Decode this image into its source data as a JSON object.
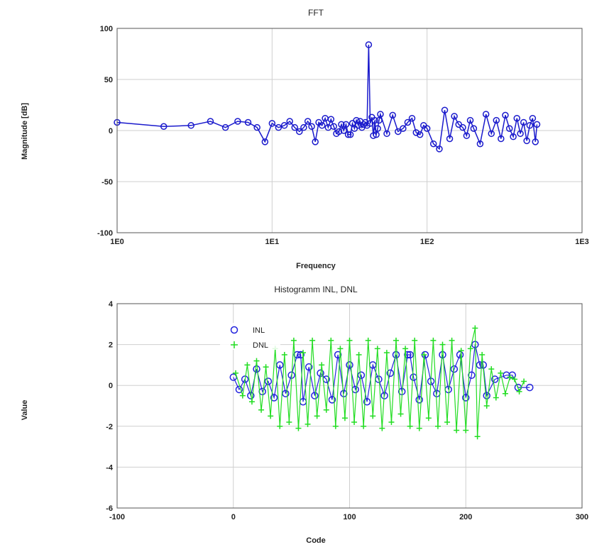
{
  "chart_data": [
    {
      "type": "line",
      "title": "FFT",
      "xlabel": "Frequency",
      "ylabel": "Magnitude [dB]",
      "xscale": "log",
      "xlim": [
        1,
        1000
      ],
      "ylim": [
        -100,
        100
      ],
      "x_ticks": [
        "1E0",
        "1E1",
        "1E2",
        "1E3"
      ],
      "y_ticks": [
        "100",
        "50",
        "0",
        "-50",
        "-100"
      ],
      "grid": true,
      "series": [
        {
          "color": "#1a1acc",
          "marker": "circle",
          "x": [
            1,
            2,
            3,
            4,
            5,
            6,
            7,
            8,
            9,
            10,
            11,
            12,
            13,
            14,
            15,
            16,
            17,
            18,
            19,
            20,
            21,
            22,
            23,
            24,
            25,
            26,
            27,
            28,
            29,
            30,
            31,
            32,
            33,
            34,
            35,
            36,
            37,
            38,
            39,
            40,
            41,
            42,
            43,
            44,
            45,
            46,
            47,
            48,
            49,
            50,
            55,
            60,
            65,
            70,
            75,
            80,
            85,
            90,
            95,
            100,
            110,
            120,
            130,
            140,
            150,
            160,
            170,
            180,
            190,
            200,
            220,
            240,
            260,
            280,
            300,
            320,
            340,
            360,
            380,
            400,
            420,
            440,
            460,
            480,
            500,
            512
          ],
          "y": [
            8,
            4,
            5,
            9,
            3,
            9,
            8,
            3,
            -11,
            7,
            3,
            5,
            9,
            3,
            -1,
            3,
            9,
            4,
            -11,
            8,
            5,
            12,
            3,
            11,
            4,
            -3,
            -1,
            6,
            0,
            6,
            -4,
            -4,
            7,
            2,
            10,
            5,
            9,
            3,
            6,
            8,
            5,
            84,
            7,
            13,
            -5,
            10,
            -4,
            2,
            10,
            16,
            -3,
            15,
            -1,
            2,
            8,
            12,
            -2,
            -4,
            5,
            2,
            -13,
            -18,
            20,
            -8,
            14,
            6,
            3,
            -5,
            10,
            2,
            -13,
            16,
            -3,
            10,
            -8,
            15,
            2,
            -6,
            12,
            -3,
            8,
            -10,
            5,
            12,
            -11,
            6
          ]
        }
      ]
    },
    {
      "type": "scatter",
      "title": "Histogramm INL, DNL",
      "xlabel": "Code",
      "ylabel": "Value",
      "xlim": [
        -100,
        300
      ],
      "ylim": [
        -6,
        4
      ],
      "x_ticks": [
        "-100",
        "0",
        "100",
        "200",
        "300"
      ],
      "y_ticks": [
        "4",
        "2",
        "0",
        "-2",
        "-4",
        "-6"
      ],
      "grid": true,
      "legend_position": "top-left",
      "series": [
        {
          "name": "INL",
          "color": "#2222dd",
          "marker": "circle",
          "x": [
            0,
            5,
            10,
            15,
            20,
            25,
            30,
            35,
            40,
            45,
            50,
            55,
            58,
            60,
            65,
            70,
            75,
            80,
            85,
            90,
            95,
            100,
            105,
            110,
            115,
            120,
            125,
            130,
            135,
            140,
            145,
            150,
            152,
            155,
            160,
            165,
            170,
            175,
            180,
            185,
            190,
            195,
            200,
            205,
            208,
            212,
            215,
            218,
            225,
            235,
            240,
            245,
            255
          ],
          "y": [
            0.4,
            -0.2,
            0.3,
            -0.5,
            0.8,
            -0.3,
            0.2,
            -0.6,
            1.0,
            -0.4,
            0.5,
            1.5,
            1.5,
            -0.8,
            0.9,
            -0.5,
            0.6,
            0.3,
            -0.7,
            1.5,
            -0.4,
            1.0,
            -0.2,
            0.5,
            -0.8,
            1.0,
            0.3,
            -0.5,
            0.6,
            1.5,
            -0.3,
            1.5,
            1.5,
            0.4,
            -0.7,
            1.5,
            0.2,
            -0.4,
            1.5,
            -0.2,
            0.8,
            1.5,
            -0.6,
            0.5,
            2.0,
            1.0,
            1.0,
            -0.5,
            0.3,
            0.5,
            0.5,
            -0.1,
            -0.1
          ]
        },
        {
          "name": "DNL",
          "color": "#22dd22",
          "marker": "plus",
          "x": [
            2,
            8,
            12,
            16,
            20,
            24,
            28,
            32,
            36,
            40,
            44,
            48,
            52,
            56,
            60,
            64,
            68,
            72,
            76,
            80,
            84,
            88,
            92,
            96,
            100,
            104,
            108,
            112,
            116,
            120,
            124,
            128,
            132,
            136,
            140,
            144,
            148,
            152,
            156,
            160,
            164,
            168,
            172,
            176,
            180,
            184,
            188,
            192,
            196,
            200,
            204,
            208,
            210,
            214,
            218,
            222,
            226,
            230,
            234,
            238,
            242,
            246,
            250
          ],
          "y": [
            0.6,
            -0.5,
            1.0,
            -0.8,
            1.2,
            -1.2,
            0.9,
            -1.5,
            1.8,
            -2.0,
            1.5,
            -1.8,
            2.2,
            -2.1,
            1.6,
            -1.9,
            2.2,
            -1.5,
            1.0,
            -1.2,
            2.2,
            -2.0,
            1.8,
            -1.6,
            2.2,
            -1.8,
            1.5,
            -2.0,
            2.2,
            -1.5,
            1.8,
            -2.1,
            1.6,
            -1.8,
            2.2,
            -1.4,
            1.8,
            -2.0,
            2.2,
            -2.1,
            1.5,
            -1.6,
            2.2,
            -2.0,
            2.0,
            -1.8,
            2.2,
            -2.2,
            1.7,
            -2.2,
            1.8,
            2.8,
            -2.5,
            1.5,
            -1.0,
            0.8,
            -0.6,
            0.6,
            -0.4,
            0.4,
            0.3,
            -0.3,
            0.2
          ]
        }
      ]
    }
  ]
}
